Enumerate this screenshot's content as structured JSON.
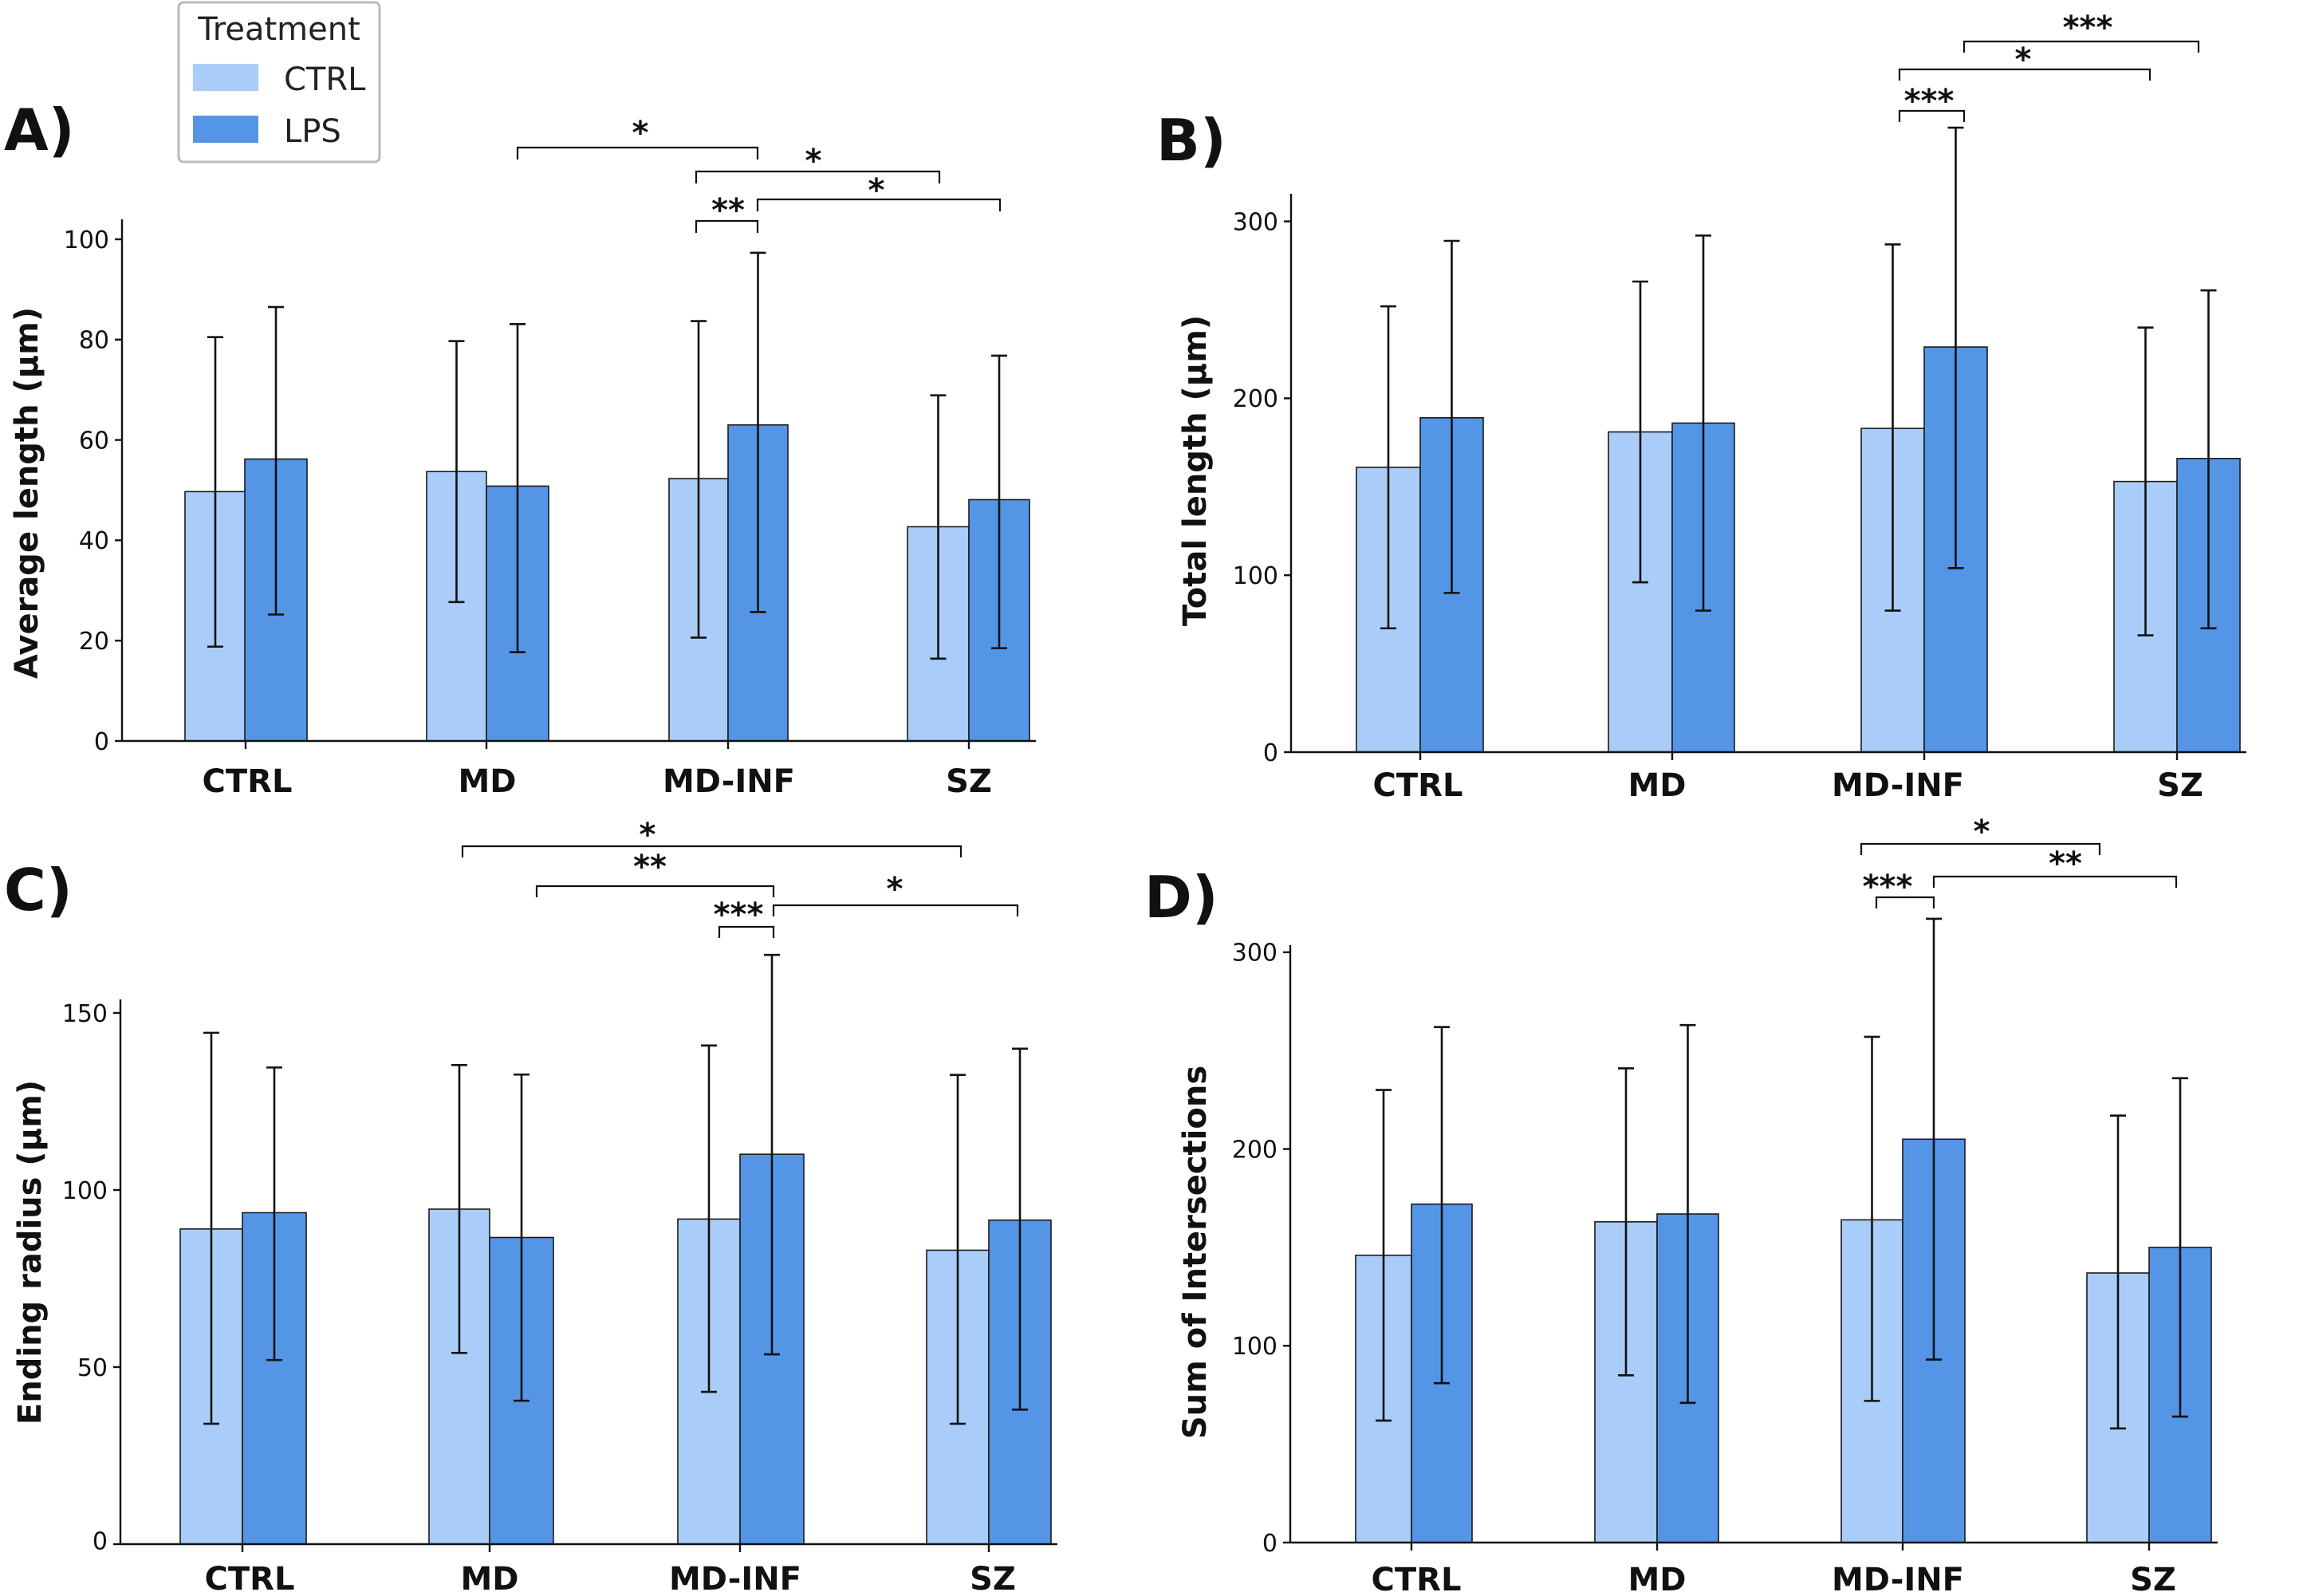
{
  "legend": {
    "title": "Treatment",
    "entries": [
      {
        "label": "CTRL",
        "color": "#a9cdf8"
      },
      {
        "label": "LPS",
        "color": "#5595e6"
      }
    ]
  },
  "chart_data": [
    {
      "panel": "A)",
      "type": "bar",
      "ylabel": "Average length (µm)",
      "categories": [
        "CTRL",
        "MD",
        "MD-INF",
        "SZ"
      ],
      "ylim": [
        0,
        102
      ],
      "yticks": [
        0,
        20,
        40,
        60,
        80,
        100
      ],
      "series": [
        {
          "name": "CTRL",
          "values": [
            49.7,
            53.7,
            52.3,
            42.7
          ],
          "err_low": [
            18.8,
            27.7,
            20.6,
            16.4
          ],
          "err_high": [
            80.5,
            79.7,
            83.7,
            68.9
          ]
        },
        {
          "name": "LPS",
          "values": [
            56.2,
            50.8,
            63.0,
            48.1
          ],
          "err_low": [
            25.2,
            17.7,
            25.7,
            18.5
          ],
          "err_high": [
            86.5,
            83.1,
            97.3,
            76.8
          ]
        }
      ],
      "significance": [
        {
          "from": "MD-LPS",
          "to": "MD-INF-LPS",
          "label": "*"
        },
        {
          "from": "MD-INF-CTRL",
          "to": "MD-INF-LPS",
          "label": "**"
        },
        {
          "from": "MD-INF-CTRL",
          "to": "SZ-CTRL",
          "label": "*"
        },
        {
          "from": "MD-INF-LPS",
          "to": "SZ-LPS",
          "label": "*"
        }
      ]
    },
    {
      "panel": "B)",
      "type": "bar",
      "ylabel": "Total length (µm)",
      "categories": [
        "CTRL",
        "MD",
        "MD-INF",
        "SZ"
      ],
      "ylim": [
        0,
        315
      ],
      "yticks": [
        0,
        100,
        200,
        300
      ],
      "series": [
        {
          "name": "CTRL",
          "values": [
            161,
            181,
            183,
            153
          ],
          "err_low": [
            70,
            96,
            80,
            66
          ],
          "err_high": [
            252,
            266,
            287,
            240
          ]
        },
        {
          "name": "LPS",
          "values": [
            189,
            186,
            229,
            166
          ],
          "err_low": [
            90,
            80,
            104,
            70
          ],
          "err_high": [
            289,
            292,
            353,
            261
          ]
        }
      ],
      "significance": [
        {
          "from": "MD-INF-CTRL",
          "to": "MD-INF-LPS",
          "label": "***"
        },
        {
          "from": "MD-INF-CTRL",
          "to": "SZ-CTRL",
          "label": "*"
        },
        {
          "from": "MD-INF-LPS",
          "to": "SZ-LPS",
          "label": "***"
        }
      ]
    },
    {
      "panel": "C)",
      "type": "bar",
      "ylabel": "Ending radius (µm)",
      "categories": [
        "CTRL",
        "MD",
        "MD-INF",
        "SZ"
      ],
      "ylim": [
        0,
        152
      ],
      "yticks": [
        0,
        50,
        100,
        150
      ],
      "series": [
        {
          "name": "CTRL",
          "values": [
            89.0,
            94.6,
            91.8,
            83.0
          ],
          "err_low": [
            34,
            54,
            43,
            34
          ],
          "err_high": [
            144.4,
            135.3,
            140.8,
            132.5
          ]
        },
        {
          "name": "LPS",
          "values": [
            93.6,
            86.6,
            110.1,
            91.5
          ],
          "err_low": [
            52,
            40.5,
            53.6,
            38
          ],
          "err_high": [
            134.6,
            132.6,
            166.4,
            139.9
          ]
        }
      ],
      "significance": [
        {
          "from": "MD-CTRL",
          "to": "SZ-CTRL",
          "label": "*"
        },
        {
          "from": "MD-LPS",
          "to": "MD-INF-LPS",
          "label": "**"
        },
        {
          "from": "MD-INF-CTRL",
          "to": "MD-INF-LPS",
          "label": "***"
        },
        {
          "from": "MD-INF-LPS",
          "to": "SZ-LPS",
          "label": "*"
        }
      ]
    },
    {
      "panel": "D)",
      "type": "bar",
      "ylabel": "Sum of Intersections",
      "categories": [
        "CTRL",
        "MD",
        "MD-INF",
        "SZ"
      ],
      "ylim": [
        0,
        303
      ],
      "yticks": [
        0,
        100,
        200,
        300
      ],
      "series": [
        {
          "name": "CTRL",
          "values": [
            146,
            163,
            164,
            137
          ],
          "err_low": [
            62,
            85,
            72,
            58
          ],
          "err_high": [
            230,
            241,
            257,
            217
          ]
        },
        {
          "name": "LPS",
          "values": [
            172,
            167,
            205,
            150
          ],
          "err_low": [
            81,
            71,
            93,
            64
          ],
          "err_high": [
            262,
            263,
            317,
            236
          ]
        }
      ],
      "significance": [
        {
          "from": "MD-INF-CTRL",
          "to": "MD-INF-LPS",
          "label": "***"
        },
        {
          "from": "MD-INF-CTRL",
          "to": "SZ-CTRL",
          "label": "*"
        },
        {
          "from": "MD-INF-LPS",
          "to": "SZ-LPS",
          "label": "**"
        }
      ]
    }
  ]
}
